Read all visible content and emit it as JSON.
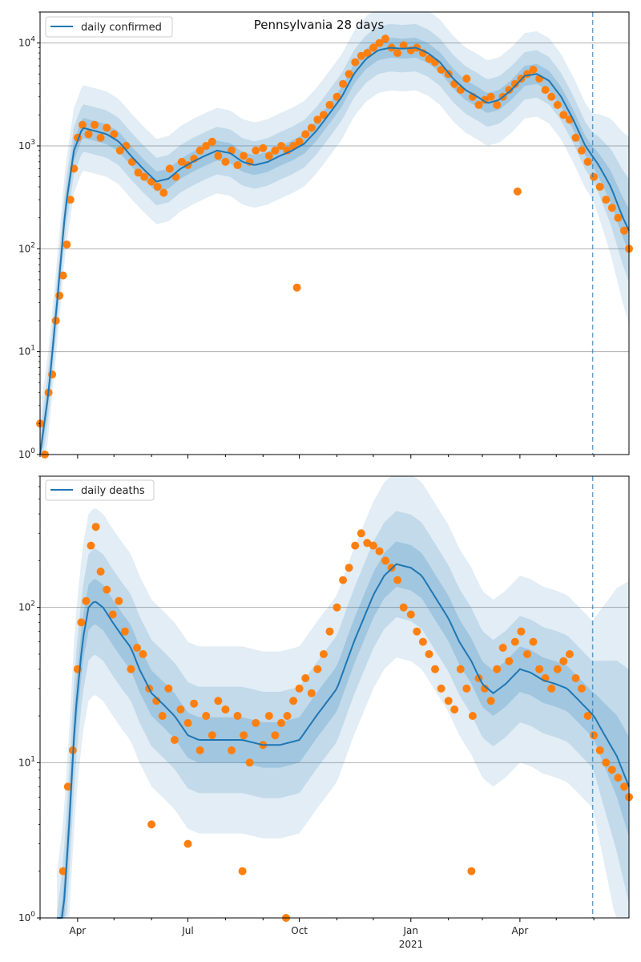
{
  "figure": {
    "title": "Pennsylvania 28 days"
  },
  "colors": {
    "model_line": "#1f77b4",
    "observed_points": "#ff7f0e",
    "band": "#1f77b4",
    "grid": "#b0b0b0",
    "forecast_marker": "#1f77b4"
  },
  "x_axis": {
    "tick_labels": [
      "Apr",
      "Jul",
      "Oct",
      "Jan",
      "Apr"
    ],
    "year_label": "2021"
  },
  "chart_data": [
    {
      "type": "line",
      "title": "Pennsylvania 28 days",
      "legend": "top-left",
      "yscale": "log",
      "ylim": [
        1,
        20000
      ],
      "xlim": [
        "2020-03-01",
        "2021-06-30"
      ],
      "grid": "y",
      "y_ticks": [
        1,
        10,
        100,
        1000,
        10000
      ],
      "y_tick_labels": [
        "10^0",
        "10^1",
        "10^2",
        "10^3",
        "10^4"
      ],
      "forecast_start": "2021-05-31",
      "series": [
        {
          "name": "daily confirmed",
          "kind": "model",
          "x": [
            "2020-03-01",
            "2020-03-08",
            "2020-03-15",
            "2020-03-22",
            "2020-03-29",
            "2020-04-05",
            "2020-04-15",
            "2020-04-25",
            "2020-05-05",
            "2020-05-15",
            "2020-05-25",
            "2020-06-05",
            "2020-06-15",
            "2020-06-25",
            "2020-07-05",
            "2020-07-15",
            "2020-07-25",
            "2020-08-05",
            "2020-08-15",
            "2020-08-25",
            "2020-09-05",
            "2020-09-15",
            "2020-09-25",
            "2020-10-05",
            "2020-10-15",
            "2020-10-25",
            "2020-11-05",
            "2020-11-15",
            "2020-11-25",
            "2020-12-05",
            "2020-12-15",
            "2020-12-25",
            "2021-01-05",
            "2021-01-15",
            "2021-01-25",
            "2021-02-05",
            "2021-02-15",
            "2021-02-25",
            "2021-03-05",
            "2021-03-15",
            "2021-03-25",
            "2021-04-05",
            "2021-04-15",
            "2021-04-25",
            "2021-05-05",
            "2021-05-15",
            "2021-05-25",
            "2021-06-05",
            "2021-06-15",
            "2021-06-25",
            "2021-06-30"
          ],
          "values": [
            1,
            4,
            30,
            250,
            900,
            1500,
            1400,
            1300,
            1100,
            800,
            600,
            450,
            480,
            600,
            700,
            800,
            900,
            850,
            700,
            650,
            700,
            800,
            900,
            1050,
            1400,
            2000,
            3000,
            5000,
            7000,
            8500,
            9000,
            8800,
            9000,
            8000,
            6500,
            4500,
            3500,
            3000,
            2600,
            2800,
            3500,
            4800,
            5000,
            4300,
            3000,
            1800,
            1000,
            650,
            400,
            200,
            150
          ]
        },
        {
          "name": "",
          "kind": "observed",
          "x": [
            "2020-03-01",
            "2020-03-05",
            "2020-03-08",
            "2020-03-11",
            "2020-03-14",
            "2020-03-17",
            "2020-03-20",
            "2020-03-23",
            "2020-03-26",
            "2020-03-29",
            "2020-04-01",
            "2020-04-05",
            "2020-04-10",
            "2020-04-15",
            "2020-04-20",
            "2020-04-25",
            "2020-05-01",
            "2020-05-06",
            "2020-05-11",
            "2020-05-16",
            "2020-05-21",
            "2020-05-26",
            "2020-06-01",
            "2020-06-06",
            "2020-06-11",
            "2020-06-16",
            "2020-06-21",
            "2020-06-26",
            "2020-07-01",
            "2020-07-06",
            "2020-07-11",
            "2020-07-16",
            "2020-07-21",
            "2020-07-26",
            "2020-08-01",
            "2020-08-06",
            "2020-08-11",
            "2020-08-16",
            "2020-08-21",
            "2020-08-26",
            "2020-09-01",
            "2020-09-06",
            "2020-09-11",
            "2020-09-16",
            "2020-09-21",
            "2020-09-26",
            "2020-10-01",
            "2020-10-06",
            "2020-10-11",
            "2020-10-16",
            "2020-10-21",
            "2020-10-26",
            "2020-11-01",
            "2020-11-06",
            "2020-11-11",
            "2020-11-16",
            "2020-11-21",
            "2020-11-26",
            "2020-12-01",
            "2020-12-06",
            "2020-12-11",
            "2020-12-16",
            "2020-12-21",
            "2020-12-26",
            "2021-01-01",
            "2021-01-06",
            "2021-01-11",
            "2021-01-16",
            "2021-01-21",
            "2021-01-26",
            "2021-02-01",
            "2021-02-06",
            "2021-02-11",
            "2021-02-16",
            "2021-02-21",
            "2021-02-26",
            "2021-03-03",
            "2021-03-08",
            "2021-03-13",
            "2021-03-18",
            "2021-03-23",
            "2021-03-28",
            "2021-04-02",
            "2021-04-07",
            "2021-04-12",
            "2021-04-17",
            "2021-04-22",
            "2021-04-27",
            "2021-05-02",
            "2021-05-07",
            "2021-05-12",
            "2021-05-17",
            "2021-05-22",
            "2021-05-27",
            "2021-06-01",
            "2021-06-06",
            "2021-06-11",
            "2021-06-16",
            "2021-06-21",
            "2021-06-26",
            "2021-06-30",
            "2020-09-29",
            "2021-03-30"
          ],
          "values": [
            2,
            1,
            4,
            6,
            20,
            35,
            55,
            110,
            300,
            600,
            1200,
            1600,
            1300,
            1600,
            1200,
            1500,
            1300,
            900,
            1000,
            700,
            550,
            500,
            450,
            400,
            350,
            600,
            500,
            700,
            650,
            750,
            900,
            1000,
            1100,
            800,
            700,
            900,
            650,
            800,
            700,
            900,
            950,
            800,
            900,
            1000,
            900,
            1000,
            1100,
            1300,
            1500,
            1800,
            2000,
            2500,
            3000,
            4000,
            5000,
            6500,
            7500,
            8000,
            9000,
            10000,
            11000,
            9000,
            8000,
            9500,
            8500,
            9000,
            8000,
            7000,
            6500,
            5500,
            5000,
            4000,
            3500,
            4500,
            3000,
            2500,
            2800,
            3000,
            2500,
            3000,
            3500,
            4000,
            4500,
            5000,
            5500,
            4500,
            3500,
            3000,
            2500,
            2000,
            1800,
            1200,
            900,
            700,
            500,
            400,
            300,
            250,
            200,
            150,
            100,
            42,
            360
          ]
        }
      ]
    },
    {
      "type": "line",
      "legend": "top-left",
      "yscale": "log",
      "ylim": [
        1,
        700
      ],
      "xlim": [
        "2020-03-01",
        "2021-06-30"
      ],
      "grid": "y",
      "y_ticks": [
        1,
        10,
        100
      ],
      "y_tick_labels": [
        "10^0",
        "10^1",
        "10^2"
      ],
      "forecast_start": "2021-05-31",
      "series": [
        {
          "name": "daily deaths",
          "kind": "model",
          "x": [
            "2020-03-15",
            "2020-03-20",
            "2020-03-25",
            "2020-03-30",
            "2020-04-05",
            "2020-04-10",
            "2020-04-15",
            "2020-04-22",
            "2020-04-30",
            "2020-05-08",
            "2020-05-15",
            "2020-05-22",
            "2020-06-01",
            "2020-06-10",
            "2020-06-20",
            "2020-07-01",
            "2020-07-10",
            "2020-07-20",
            "2020-08-01",
            "2020-08-15",
            "2020-09-01",
            "2020-09-15",
            "2020-10-01",
            "2020-10-15",
            "2020-11-01",
            "2020-11-15",
            "2020-12-01",
            "2020-12-10",
            "2020-12-20",
            "2021-01-01",
            "2021-01-10",
            "2021-01-20",
            "2021-02-01",
            "2021-02-10",
            "2021-02-20",
            "2021-03-01",
            "2021-03-10",
            "2021-03-20",
            "2021-04-01",
            "2021-04-10",
            "2021-04-20",
            "2021-05-01",
            "2021-05-10",
            "2021-05-20",
            "2021-06-01",
            "2021-06-10",
            "2021-06-20",
            "2021-06-30"
          ],
          "values": [
            0.5,
            1,
            4,
            20,
            60,
            100,
            110,
            100,
            80,
            65,
            55,
            40,
            28,
            24,
            20,
            15,
            14,
            14,
            14,
            14,
            13,
            13,
            14,
            20,
            30,
            60,
            120,
            160,
            190,
            180,
            160,
            120,
            85,
            60,
            45,
            32,
            28,
            32,
            40,
            38,
            34,
            32,
            30,
            25,
            20,
            15,
            11,
            7
          ]
        },
        {
          "name": "",
          "kind": "observed",
          "x": [
            "2020-03-20",
            "2020-03-24",
            "2020-03-28",
            "2020-04-01",
            "2020-04-04",
            "2020-04-08",
            "2020-04-12",
            "2020-04-16",
            "2020-04-20",
            "2020-04-25",
            "2020-04-30",
            "2020-05-05",
            "2020-05-10",
            "2020-05-15",
            "2020-05-20",
            "2020-05-25",
            "2020-05-30",
            "2020-06-05",
            "2020-06-10",
            "2020-06-15",
            "2020-06-20",
            "2020-06-25",
            "2020-07-01",
            "2020-07-06",
            "2020-07-11",
            "2020-07-16",
            "2020-07-21",
            "2020-07-26",
            "2020-08-01",
            "2020-08-06",
            "2020-08-11",
            "2020-08-16",
            "2020-08-21",
            "2020-08-26",
            "2020-09-01",
            "2020-09-06",
            "2020-09-11",
            "2020-09-16",
            "2020-09-21",
            "2020-09-26",
            "2020-10-01",
            "2020-10-06",
            "2020-10-11",
            "2020-10-16",
            "2020-10-21",
            "2020-10-26",
            "2020-11-01",
            "2020-11-06",
            "2020-11-11",
            "2020-11-16",
            "2020-11-21",
            "2020-11-26",
            "2020-12-01",
            "2020-12-06",
            "2020-12-11",
            "2020-12-16",
            "2020-12-21",
            "2020-12-26",
            "2021-01-01",
            "2021-01-06",
            "2021-01-11",
            "2021-01-16",
            "2021-01-21",
            "2021-01-26",
            "2021-02-01",
            "2021-02-06",
            "2021-02-11",
            "2021-02-16",
            "2021-02-21",
            "2021-02-26",
            "2021-03-03",
            "2021-03-08",
            "2021-03-13",
            "2021-03-18",
            "2021-03-23",
            "2021-03-28",
            "2021-04-02",
            "2021-04-07",
            "2021-04-12",
            "2021-04-17",
            "2021-04-22",
            "2021-04-27",
            "2021-05-02",
            "2021-05-07",
            "2021-05-12",
            "2021-05-17",
            "2021-05-22",
            "2021-05-27",
            "2021-06-01",
            "2021-06-06",
            "2021-06-11",
            "2021-06-16",
            "2021-06-21",
            "2021-06-26",
            "2021-06-30",
            "2020-06-01",
            "2020-07-01",
            "2020-08-15",
            "2020-09-20",
            "2021-02-20"
          ],
          "values": [
            2,
            7,
            12,
            40,
            80,
            110,
            250,
            330,
            170,
            130,
            90,
            110,
            70,
            40,
            55,
            50,
            30,
            25,
            20,
            30,
            14,
            22,
            18,
            24,
            12,
            20,
            15,
            25,
            22,
            12,
            20,
            15,
            10,
            18,
            13,
            20,
            15,
            18,
            20,
            25,
            30,
            35,
            28,
            40,
            50,
            70,
            100,
            150,
            180,
            250,
            300,
            260,
            250,
            230,
            200,
            180,
            150,
            100,
            90,
            70,
            60,
            50,
            40,
            30,
            25,
            22,
            40,
            30,
            20,
            35,
            30,
            25,
            40,
            55,
            45,
            60,
            70,
            50,
            60,
            40,
            35,
            30,
            40,
            45,
            50,
            35,
            30,
            20,
            15,
            12,
            10,
            9,
            8,
            7,
            6,
            4,
            3,
            2,
            1,
            2
          ]
        }
      ]
    }
  ]
}
